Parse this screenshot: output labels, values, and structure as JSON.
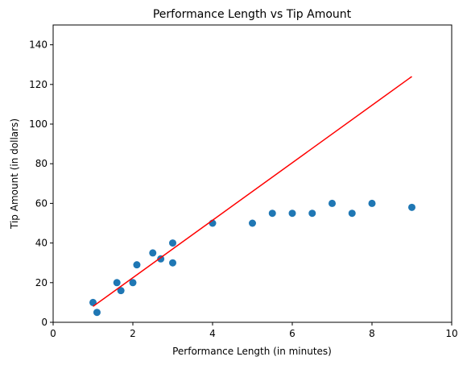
{
  "chart_data": {
    "type": "scatter",
    "title": "Performance Length vs Tip Amount",
    "xlabel": "Performance Length (in minutes)",
    "ylabel": "Tip Amount (in dollars)",
    "xlim": [
      0,
      10
    ],
    "ylim": [
      0,
      150
    ],
    "xticks": [
      0,
      2,
      4,
      6,
      8,
      10
    ],
    "yticks": [
      0,
      20,
      40,
      60,
      80,
      100,
      120,
      140
    ],
    "grid": false,
    "series": [
      {
        "type": "scatter",
        "color": "#1f77b4",
        "points": [
          {
            "x": 1.0,
            "y": 10
          },
          {
            "x": 1.1,
            "y": 5
          },
          {
            "x": 1.6,
            "y": 20
          },
          {
            "x": 1.7,
            "y": 16
          },
          {
            "x": 2.0,
            "y": 20
          },
          {
            "x": 2.1,
            "y": 29
          },
          {
            "x": 2.5,
            "y": 35
          },
          {
            "x": 2.7,
            "y": 32
          },
          {
            "x": 3.0,
            "y": 40
          },
          {
            "x": 3.0,
            "y": 30
          },
          {
            "x": 4.0,
            "y": 50
          },
          {
            "x": 5.0,
            "y": 50
          },
          {
            "x": 5.5,
            "y": 55
          },
          {
            "x": 6.0,
            "y": 55
          },
          {
            "x": 6.5,
            "y": 55
          },
          {
            "x": 7.0,
            "y": 60
          },
          {
            "x": 7.5,
            "y": 55
          },
          {
            "x": 8.0,
            "y": 60
          },
          {
            "x": 9.0,
            "y": 58
          }
        ]
      },
      {
        "type": "line",
        "color": "#ff0000",
        "points": [
          {
            "x": 1.0,
            "y": 8
          },
          {
            "x": 9.0,
            "y": 124
          }
        ]
      }
    ]
  }
}
